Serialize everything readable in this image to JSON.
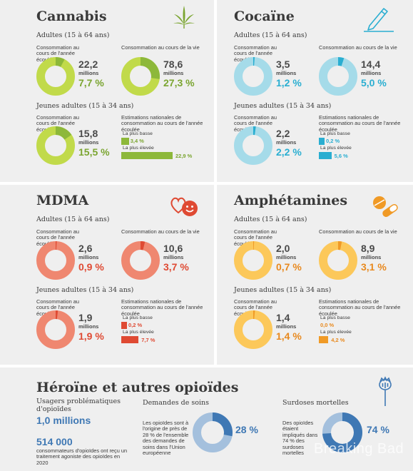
{
  "colors": {
    "cannabis": "#8db83a",
    "cannabis_light": "#c1da4a",
    "cocaine": "#2aaed1",
    "cocaine_light": "#a5dbe9",
    "mdma": "#df4a33",
    "mdma_light": "#ef8770",
    "amph": "#f09a26",
    "amph_light": "#fcc85a",
    "opioid": "#3f78b4",
    "opioid_light": "#a4c0dd"
  },
  "icons": {
    "cannabis": "cannabis-leaf-icon",
    "cocaine": "pen-line-icon",
    "mdma": "hearts-smiley-icon",
    "amph": "pill-capsule-icon",
    "opioid": "poppy-icon"
  },
  "common": {
    "adults": "Adultes (15 à 64 ans)",
    "young": "Jeunes adultes (15 à 34 ans)",
    "last_year": "Consommation au cours de l'année écoulée",
    "lifetime": "Consommation au cours de la vie",
    "national": "Estimations nationales de consommation au cours de l'année écoulée",
    "lowest": "La plus basse",
    "highest": "La plus élevée",
    "millions": "millions"
  },
  "cannabis": {
    "title": "Cannabis",
    "adults_year": {
      "value": "22,2",
      "pct": "7,7 %"
    },
    "adults_life": {
      "value": "78,6",
      "pct": "27,3 %"
    },
    "young_year": {
      "value": "15,8",
      "pct": "15,5 %"
    },
    "low": "3,4 %",
    "high": "22,9 %"
  },
  "cocaine": {
    "title": "Cocaïne",
    "adults_year": {
      "value": "3,5",
      "pct": "1,2 %"
    },
    "adults_life": {
      "value": "14,4",
      "pct": "5,0 %"
    },
    "young_year": {
      "value": "2,2",
      "pct": "2,2 %"
    },
    "low": "0,2 %",
    "high": "5,6 %"
  },
  "mdma": {
    "title": "MDMA",
    "adults_year": {
      "value": "2,6",
      "pct": "0,9 %"
    },
    "adults_life": {
      "value": "10,6",
      "pct": "3,7 %"
    },
    "young_year": {
      "value": "1,9",
      "pct": "1,9 %"
    },
    "low": "0,2 %",
    "high": "7,7 %"
  },
  "amph": {
    "title": "Amphétamines",
    "adults_year": {
      "value": "2,0",
      "pct": "0,7 %"
    },
    "adults_life": {
      "value": "8,9",
      "pct": "3,1 %"
    },
    "young_year": {
      "value": "1,4",
      "pct": "1,4 %"
    },
    "low": "0,0 %",
    "high": "4,2 %"
  },
  "opioids": {
    "title": "Héroïne et autres opioïdes",
    "users_label": "Usagers problématiques d'opioïdes",
    "users_value": "1,0 millions",
    "treat_value": "514 000",
    "treat_label": "consommateurs d'opioïdes ont reçu un traitement agoniste des opioïdes en 2020",
    "care_heading": "Demandes de soins",
    "care_text": "Les opioïdes sont à l'origine de près de 28 % de l'ensemble des demandes de soins dans l'Union européenne",
    "care_pct": "28 %",
    "od_heading": "Surdoses mortelles",
    "od_text": "Des opioïdes étaient impliqués dans 74 % des surdoses mortelles",
    "od_pct": "74 %",
    "watermark": "Breaking Bad"
  },
  "chart_data": [
    {
      "type": "pie",
      "title": "Cannabis",
      "series": [
        {
          "name": "Adultes (15 à 64 ans)",
          "labels": [
            "Consommation au cours de l'année écoulée",
            "Consommation au cours de la vie"
          ],
          "millions": [
            22.2,
            78.6
          ],
          "percent": [
            7.7,
            27.3
          ]
        },
        {
          "name": "Jeunes adultes (15 à 34 ans)",
          "labels": [
            "Consommation au cours de l'année écoulée"
          ],
          "millions": [
            15.8
          ],
          "percent": [
            15.5
          ]
        }
      ],
      "national_estimates": {
        "lowest_percent": 3.4,
        "highest_percent": 22.9
      }
    },
    {
      "type": "pie",
      "title": "Cocaïne",
      "series": [
        {
          "name": "Adultes (15 à 64 ans)",
          "labels": [
            "Consommation au cours de l'année écoulée",
            "Consommation au cours de la vie"
          ],
          "millions": [
            3.5,
            14.4
          ],
          "percent": [
            1.2,
            5.0
          ]
        },
        {
          "name": "Jeunes adultes (15 à 34 ans)",
          "labels": [
            "Consommation au cours de l'année écoulée"
          ],
          "millions": [
            2.2
          ],
          "percent": [
            2.2
          ]
        }
      ],
      "national_estimates": {
        "lowest_percent": 0.2,
        "highest_percent": 5.6
      }
    },
    {
      "type": "pie",
      "title": "MDMA",
      "series": [
        {
          "name": "Adultes (15 à 64 ans)",
          "labels": [
            "Consommation au cours de l'année écoulée",
            "Consommation au cours de la vie"
          ],
          "millions": [
            2.6,
            10.6
          ],
          "percent": [
            0.9,
            3.7
          ]
        },
        {
          "name": "Jeunes adultes (15 à 34 ans)",
          "labels": [
            "Consommation au cours de l'année écoulée"
          ],
          "millions": [
            1.9
          ],
          "percent": [
            1.9
          ]
        }
      ],
      "national_estimates": {
        "lowest_percent": 0.2,
        "highest_percent": 7.7
      }
    },
    {
      "type": "pie",
      "title": "Amphétamines",
      "series": [
        {
          "name": "Adultes (15 à 64 ans)",
          "labels": [
            "Consommation au cours de l'année écoulée",
            "Consommation au cours de la vie"
          ],
          "millions": [
            2.0,
            8.9
          ],
          "percent": [
            0.7,
            3.1
          ]
        },
        {
          "name": "Jeunes adultes (15 à 34 ans)",
          "labels": [
            "Consommation au cours de l'année écoulée"
          ],
          "millions": [
            1.4
          ],
          "percent": [
            1.4
          ]
        }
      ],
      "national_estimates": {
        "lowest_percent": 0.0,
        "highest_percent": 4.2
      }
    },
    {
      "type": "pie",
      "title": "Héroïne et autres opioïdes",
      "series": [
        {
          "labels": [
            "Demandes de soins",
            "Surdoses mortelles"
          ],
          "percent": [
            28,
            74
          ]
        }
      ]
    }
  ]
}
